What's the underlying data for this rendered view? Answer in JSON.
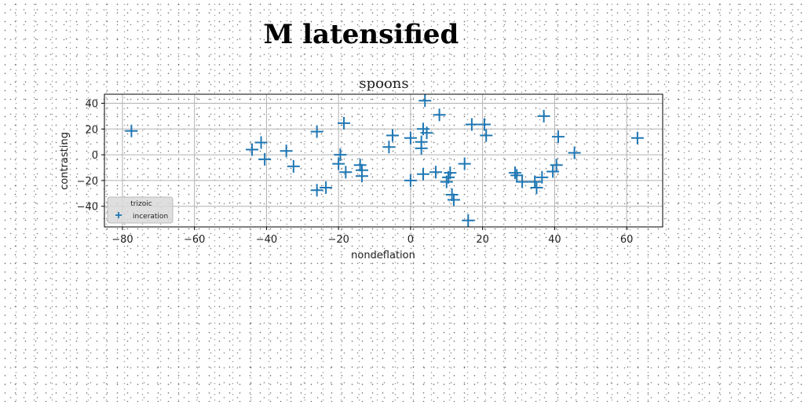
{
  "page_title": "M latensified",
  "chart_data": {
    "type": "scatter",
    "title": "spoons",
    "xlabel": "nondeflation",
    "ylabel": "contrasting",
    "xlim": [
      -85,
      70
    ],
    "ylim": [
      -56,
      47
    ],
    "xticks": [
      -80,
      -60,
      -40,
      -20,
      0,
      20,
      40,
      60
    ],
    "yticks": [
      -40,
      -20,
      0,
      20,
      40
    ],
    "grid": true,
    "legend": {
      "title": "trizoic",
      "placement": "lower-left",
      "entries": [
        "inceration"
      ]
    },
    "marker": "plus",
    "color": "#1f77b4",
    "series": [
      {
        "name": "inceration",
        "points": [
          [
            -77.5,
            18.5
          ],
          [
            -44,
            4
          ],
          [
            -41.5,
            9.5
          ],
          [
            -40.5,
            -3.5
          ],
          [
            -34.5,
            3
          ],
          [
            -32.5,
            -9
          ],
          [
            -26,
            18
          ],
          [
            -26,
            -27.5
          ],
          [
            -23.5,
            -25.5
          ],
          [
            -20,
            -7
          ],
          [
            -19.5,
            0
          ],
          [
            -18.5,
            24.5
          ],
          [
            -18,
            -13.5
          ],
          [
            -14,
            -8
          ],
          [
            -13.5,
            -12
          ],
          [
            -13.5,
            -16.5
          ],
          [
            -6,
            6
          ],
          [
            -5,
            15
          ],
          [
            0,
            13
          ],
          [
            0,
            -20
          ],
          [
            3,
            5
          ],
          [
            3,
            10
          ],
          [
            3.5,
            -15
          ],
          [
            3.5,
            20
          ],
          [
            4,
            42
          ],
          [
            4.5,
            17
          ],
          [
            7,
            -13.5
          ],
          [
            8,
            31
          ],
          [
            10,
            -21
          ],
          [
            10.5,
            -17.5
          ],
          [
            11,
            -14
          ],
          [
            11.5,
            -31
          ],
          [
            12,
            -35
          ],
          [
            15,
            -7
          ],
          [
            16,
            -51
          ],
          [
            17,
            23.5
          ],
          [
            20.5,
            23.5
          ],
          [
            21,
            15
          ],
          [
            29,
            -14
          ],
          [
            29.5,
            -16
          ],
          [
            31,
            -21
          ],
          [
            34.5,
            -21
          ],
          [
            35,
            -25.5
          ],
          [
            36.5,
            -17.5
          ],
          [
            37,
            30
          ],
          [
            39.5,
            -13
          ],
          [
            40.5,
            -8
          ],
          [
            41,
            14
          ],
          [
            45.5,
            1.5
          ],
          [
            63,
            13
          ]
        ]
      }
    ]
  }
}
